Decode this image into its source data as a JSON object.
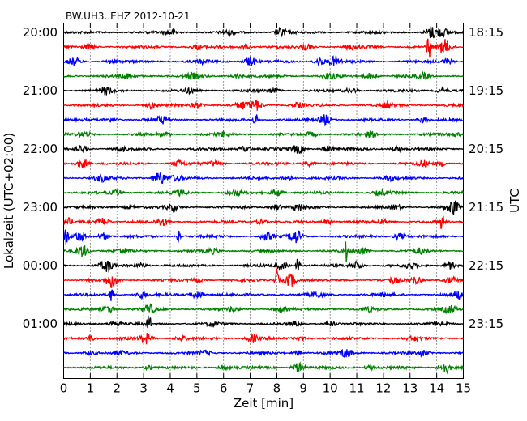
{
  "chart_data": {
    "type": "line",
    "title": "BW.UH3..EHZ 2012-10-21",
    "xlabel": "Zeit  [min]",
    "ylabel_left": "Lokalzeit (UTC+02:00)",
    "ylabel_right": "UTC",
    "xlim": [
      0,
      15
    ],
    "x_ticks": [
      "0",
      "1",
      "2",
      "3",
      "4",
      "5",
      "6",
      "7",
      "8",
      "9",
      "10",
      "11",
      "12",
      "13",
      "14",
      "15"
    ],
    "left_time_labels": [
      "20:00",
      "21:00",
      "22:00",
      "23:00",
      "00:00",
      "01:00"
    ],
    "right_time_labels": [
      "18:15",
      "19:15",
      "20:15",
      "21:15",
      "22:15",
      "23:15"
    ],
    "rows_per_hour": 4,
    "row_count": 24,
    "trace_colors": [
      "#000000",
      "#ff0000",
      "#0000ff",
      "#008000"
    ],
    "grid": "vertical-dotted",
    "series": [
      {
        "row": 0,
        "color": "#000000",
        "events": [
          [
            4.1,
            0.5
          ],
          [
            6.2,
            0.3
          ],
          [
            8.2,
            0.8
          ],
          [
            13.8,
            1.0
          ],
          [
            14.2,
            0.7
          ]
        ]
      },
      {
        "row": 1,
        "color": "#ff0000",
        "events": [
          [
            1.0,
            0.4
          ],
          [
            5.0,
            0.4
          ],
          [
            6.8,
            0.3
          ],
          [
            9.1,
            0.5
          ],
          [
            10.8,
            0.4
          ],
          [
            13.7,
            2.2
          ],
          [
            14.3,
            1.2
          ]
        ]
      },
      {
        "row": 2,
        "color": "#0000ff",
        "events": [
          [
            0.4,
            0.6
          ],
          [
            1.8,
            0.4
          ],
          [
            5.2,
            0.3
          ],
          [
            7.0,
            0.8
          ],
          [
            9.6,
            0.6
          ],
          [
            10.2,
            0.9
          ],
          [
            14.4,
            0.5
          ]
        ]
      },
      {
        "row": 3,
        "color": "#008000",
        "events": [
          [
            2.4,
            0.4
          ],
          [
            4.8,
            0.5
          ],
          [
            6.5,
            0.3
          ],
          [
            10.0,
            0.5
          ],
          [
            11.5,
            0.5
          ],
          [
            13.5,
            0.4
          ]
        ]
      },
      {
        "row": 4,
        "color": "#000000",
        "events": [
          [
            1.6,
            0.6
          ],
          [
            4.7,
            0.4
          ],
          [
            7.9,
            0.4
          ],
          [
            10.8,
            0.4
          ],
          [
            14.2,
            0.4
          ]
        ]
      },
      {
        "row": 5,
        "color": "#ff0000",
        "events": [
          [
            3.3,
            0.5
          ],
          [
            5.0,
            0.5
          ],
          [
            6.7,
            0.6
          ],
          [
            7.2,
            0.9
          ],
          [
            8.8,
            0.4
          ],
          [
            12.1,
            0.4
          ]
        ]
      },
      {
        "row": 6,
        "color": "#0000ff",
        "events": [
          [
            1.8,
            0.4
          ],
          [
            3.7,
            0.6
          ],
          [
            7.2,
            1.6
          ],
          [
            9.8,
            0.9
          ],
          [
            13.5,
            0.4
          ]
        ]
      },
      {
        "row": 7,
        "color": "#008000",
        "events": [
          [
            0.8,
            0.4
          ],
          [
            3.8,
            0.4
          ],
          [
            6.0,
            0.3
          ],
          [
            9.3,
            0.4
          ],
          [
            11.5,
            0.4
          ],
          [
            14.7,
            0.3
          ]
        ]
      },
      {
        "row": 8,
        "color": "#000000",
        "events": [
          [
            0.7,
            0.6
          ],
          [
            2.1,
            0.4
          ],
          [
            6.8,
            0.5
          ],
          [
            8.8,
            0.7
          ],
          [
            9.9,
            0.5
          ],
          [
            12.5,
            0.4
          ]
        ]
      },
      {
        "row": 9,
        "color": "#ff0000",
        "events": [
          [
            0.7,
            0.8
          ],
          [
            4.3,
            0.5
          ],
          [
            5.7,
            0.5
          ],
          [
            9.2,
            0.4
          ],
          [
            13.5,
            0.5
          ],
          [
            14.2,
            0.4
          ]
        ]
      },
      {
        "row": 10,
        "color": "#0000ff",
        "events": [
          [
            1.4,
            0.6
          ],
          [
            3.6,
            1.2
          ],
          [
            4.2,
            0.4
          ],
          [
            8.4,
            0.4
          ],
          [
            12.2,
            0.4
          ]
        ]
      },
      {
        "row": 11,
        "color": "#008000",
        "events": [
          [
            2.0,
            0.4
          ],
          [
            4.4,
            0.4
          ],
          [
            6.4,
            0.6
          ],
          [
            8.0,
            0.7
          ],
          [
            11.9,
            0.4
          ]
        ]
      },
      {
        "row": 12,
        "color": "#000000",
        "events": [
          [
            2.5,
            0.3
          ],
          [
            4.1,
            0.5
          ],
          [
            8.0,
            0.5
          ],
          [
            8.8,
            0.6
          ],
          [
            12.5,
            0.4
          ],
          [
            14.6,
            1.2
          ]
        ]
      },
      {
        "row": 13,
        "color": "#ff0000",
        "events": [
          [
            0.1,
            0.6
          ],
          [
            1.5,
            0.7
          ],
          [
            3.7,
            0.6
          ],
          [
            7.4,
            0.4
          ],
          [
            9.9,
            0.4
          ],
          [
            12.0,
            0.3
          ],
          [
            14.2,
            1.5
          ]
        ]
      },
      {
        "row": 14,
        "color": "#0000ff",
        "events": [
          [
            0.1,
            1.8
          ],
          [
            0.6,
            0.8
          ],
          [
            1.5,
            0.5
          ],
          [
            4.3,
            1.4
          ],
          [
            7.6,
            0.7
          ],
          [
            8.7,
            1.2
          ],
          [
            12.6,
            0.5
          ]
        ]
      },
      {
        "row": 15,
        "color": "#008000",
        "events": [
          [
            0.7,
            1.1
          ],
          [
            2.2,
            0.4
          ],
          [
            5.6,
            0.4
          ],
          [
            10.6,
            1.8
          ],
          [
            11.2,
            0.7
          ],
          [
            13.4,
            0.4
          ]
        ]
      },
      {
        "row": 16,
        "color": "#000000",
        "events": [
          [
            1.6,
            1.0
          ],
          [
            2.9,
            0.4
          ],
          [
            8.2,
            0.6
          ],
          [
            8.8,
            1.6
          ],
          [
            11.0,
            0.7
          ],
          [
            13.0,
            0.4
          ],
          [
            14.5,
            0.6
          ]
        ]
      },
      {
        "row": 17,
        "color": "#ff0000",
        "events": [
          [
            1.8,
            1.2
          ],
          [
            5.0,
            0.3
          ],
          [
            8.0,
            2.0
          ],
          [
            8.5,
            1.2
          ],
          [
            12.4,
            0.4
          ],
          [
            13.2,
            0.7
          ],
          [
            14.5,
            0.5
          ]
        ]
      },
      {
        "row": 18,
        "color": "#0000ff",
        "events": [
          [
            1.8,
            1.5
          ],
          [
            2.9,
            0.6
          ],
          [
            5.0,
            0.7
          ],
          [
            9.5,
            0.4
          ],
          [
            12.1,
            0.3
          ],
          [
            14.8,
            0.6
          ]
        ]
      },
      {
        "row": 19,
        "color": "#008000",
        "events": [
          [
            1.7,
            0.6
          ],
          [
            3.2,
            0.8
          ],
          [
            6.3,
            0.3
          ],
          [
            8.1,
            0.5
          ],
          [
            11.4,
            0.3
          ],
          [
            14.5,
            0.6
          ]
        ]
      },
      {
        "row": 20,
        "color": "#000000",
        "events": [
          [
            1.9,
            0.5
          ],
          [
            3.2,
            1.8
          ],
          [
            5.6,
            0.3
          ],
          [
            8.7,
            0.3
          ],
          [
            10.0,
            0.4
          ],
          [
            14.2,
            0.4
          ]
        ]
      },
      {
        "row": 21,
        "color": "#ff0000",
        "events": [
          [
            1.0,
            0.4
          ],
          [
            3.1,
            0.9
          ],
          [
            4.4,
            0.4
          ],
          [
            7.1,
            0.7
          ],
          [
            9.0,
            0.3
          ],
          [
            13.1,
            0.3
          ]
        ]
      },
      {
        "row": 22,
        "color": "#0000ff",
        "events": [
          [
            1.0,
            0.3
          ],
          [
            2.1,
            0.3
          ],
          [
            5.3,
            0.4
          ],
          [
            8.8,
            0.4
          ],
          [
            10.6,
            0.7
          ],
          [
            13.5,
            0.4
          ]
        ]
      },
      {
        "row": 23,
        "color": "#008000",
        "events": [
          [
            3.2,
            0.3
          ],
          [
            6.0,
            0.3
          ],
          [
            8.8,
            0.8
          ],
          [
            11.5,
            0.3
          ],
          [
            14.3,
            1.0
          ]
        ]
      }
    ]
  }
}
